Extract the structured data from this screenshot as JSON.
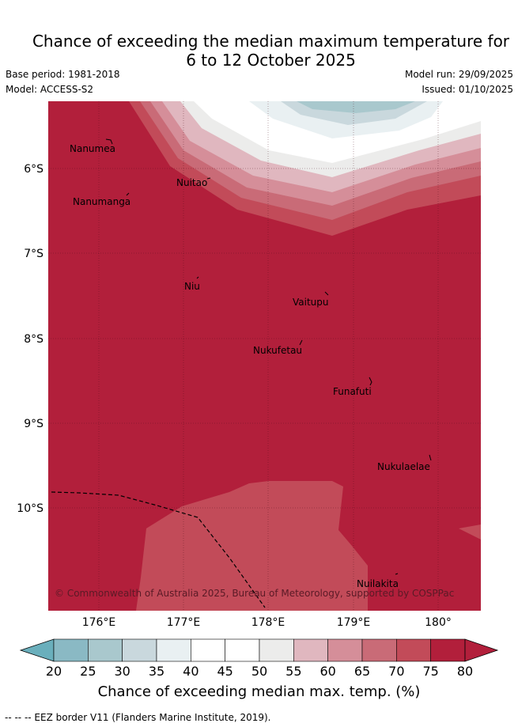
{
  "title_line1": "Chance of exceeding the median maximum temperature for",
  "title_line2": "6 to 12 October 2025",
  "base_period": "Base period: 1981-2018",
  "model": "Model: ACCESS-S2",
  "model_run": "Model run: 29/09/2025",
  "issued": "Issued: 01/10/2025",
  "lat_labels": [
    "6°S",
    "7°S",
    "8°S",
    "9°S",
    "10°S"
  ],
  "lon_labels": [
    "176°E",
    "177°E",
    "178°E",
    "179°E",
    "180°"
  ],
  "places": [
    "Nanumea",
    "Nuitao",
    "Nanumanga",
    "Niu",
    "Vaitupu",
    "Nukufetau",
    "Funafuti",
    "Nukulaelae",
    "Nuilakita"
  ],
  "copyright": "© Commonwealth of Australia 2025, Bureau of Meteorology, supported by COSPPac",
  "colorbar": {
    "ticks": [
      "20",
      "25",
      "30",
      "35",
      "40",
      "45",
      "50",
      "55",
      "60",
      "65",
      "70",
      "75",
      "80"
    ],
    "title": "Chance of exceeding median max. temp. (%)",
    "colors": [
      "#6aafbc",
      "#8ab9c4",
      "#a9c8cd",
      "#c9d8dd",
      "#e9f0f2",
      "#ffffff",
      "#ffffff",
      "#ececeb",
      "#e0b7bf",
      "#d58e99",
      "#c96b77",
      "#c24b59",
      "#b21f3b"
    ]
  },
  "eez_note": "--  --  -- EEZ border V11 (Flanders Marine Institute, 2019)."
}
